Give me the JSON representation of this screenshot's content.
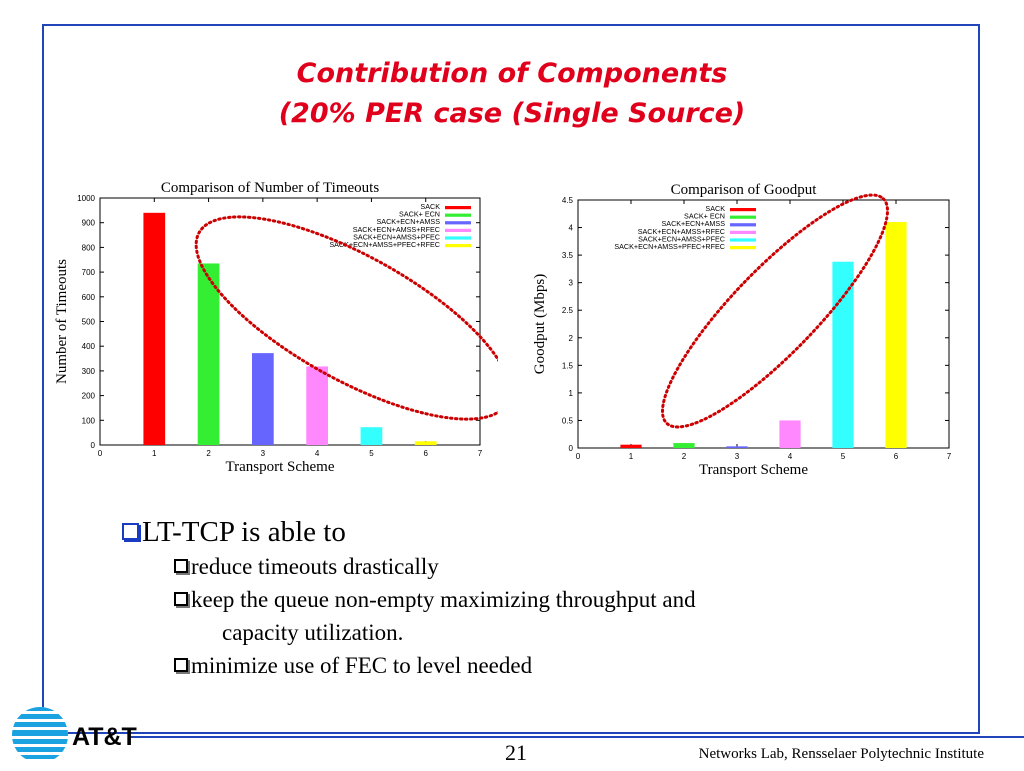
{
  "slide": {
    "title_line1": "Contribution of Components",
    "title_line2": "(20% PER case (Single Source)",
    "bullets": {
      "main": "LT-TCP is able to",
      "sub1": "reduce timeouts drastically",
      "sub2a": "keep the queue non-empty maximizing throughput and",
      "sub2b": "capacity utilization.",
      "sub3": "minimize use of FEC to level needed"
    },
    "page_number": "21",
    "footer": "Networks Lab, Rensselaer Polytechnic Institute",
    "logo_text": "AT&T"
  },
  "colors": {
    "frame": "#1f45b8",
    "title": "#e0001b",
    "annotation_ellipse": "#cc0000"
  },
  "chart_data": [
    {
      "type": "bar",
      "title": "Comparison of Number of Timeouts",
      "xlabel": "Transport Scheme",
      "ylabel": "Number of Timeouts",
      "xlim": [
        0,
        7
      ],
      "ylim": [
        0,
        1000
      ],
      "xticks": [
        0,
        1,
        2,
        3,
        4,
        5,
        6,
        7
      ],
      "yticks": [
        0,
        100,
        200,
        300,
        400,
        500,
        600,
        700,
        800,
        900,
        1000
      ],
      "grid": false,
      "legend_position": "top-right",
      "series": [
        {
          "name": "SACK",
          "x": 1,
          "value": 940,
          "color": "#ff0000"
        },
        {
          "name": "SACK+ ECN",
          "x": 2,
          "value": 735,
          "color": "#33ee33"
        },
        {
          "name": "SACK+ECN+AMSS",
          "x": 3,
          "value": 372,
          "color": "#6666ff"
        },
        {
          "name": "SACK+ECN+AMSS+RFEC",
          "x": 4,
          "value": 318,
          "color": "#ff88ff"
        },
        {
          "name": "SACK+ECN+AMSS+PFEC",
          "x": 5,
          "value": 72,
          "color": "#33ffff"
        },
        {
          "name": "SACK+ECN+AMSS+PFEC+RFEC",
          "x": 6,
          "value": 15,
          "color": "#ffff00"
        }
      ]
    },
    {
      "type": "bar",
      "title": "Comparison of Goodput",
      "xlabel": "Transport Scheme",
      "ylabel": "Goodput (Mbps)",
      "xlim": [
        0,
        7
      ],
      "ylim": [
        0,
        4.5
      ],
      "xticks": [
        0,
        1,
        2,
        3,
        4,
        5,
        6,
        7
      ],
      "yticks": [
        0,
        0.5,
        1,
        1.5,
        2,
        2.5,
        3,
        3.5,
        4,
        4.5
      ],
      "grid": false,
      "legend_position": "top-left",
      "series": [
        {
          "name": "SACK",
          "x": 1,
          "value": 0.06,
          "color": "#ff0000"
        },
        {
          "name": "SACK+ ECN",
          "x": 2,
          "value": 0.09,
          "color": "#33ee33"
        },
        {
          "name": "SACK+ECN+AMSS",
          "x": 3,
          "value": 0.03,
          "color": "#6666ff"
        },
        {
          "name": "SACK+ECN+AMSS+RFEC",
          "x": 4,
          "value": 0.5,
          "color": "#ff88ff"
        },
        {
          "name": "SACK+ECN+AMSS+PFEC",
          "x": 5,
          "value": 3.38,
          "color": "#33ffff"
        },
        {
          "name": "SACK+ECN+AMSS+PFEC+RFEC",
          "x": 6,
          "value": 4.1,
          "color": "#ffff00"
        }
      ]
    }
  ]
}
